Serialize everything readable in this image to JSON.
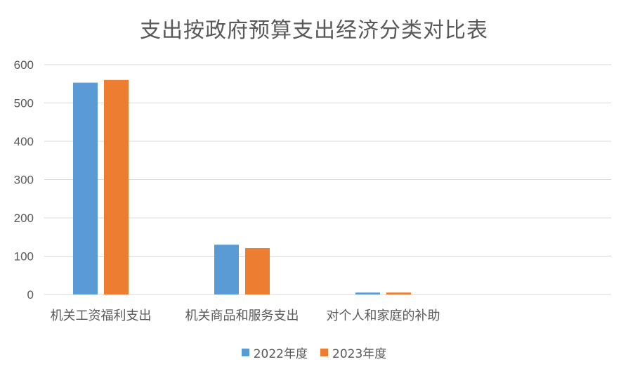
{
  "chart_data": {
    "type": "bar",
    "title": "支出按政府预算支出经济分类对比表",
    "categories": [
      "机关工资福利支出",
      "机关商品和服务支出",
      "对个人和家庭的补助"
    ],
    "series": [
      {
        "name": "2022年度",
        "values": [
          553,
          130,
          5
        ],
        "color": "#5B9BD5"
      },
      {
        "name": "2023年度",
        "values": [
          560,
          121,
          5
        ],
        "color": "#ED7D31"
      }
    ],
    "ylim": [
      0,
      600
    ],
    "yticks": [
      0,
      100,
      200,
      300,
      400,
      500,
      600
    ],
    "grid": true,
    "legend": "bottom"
  }
}
